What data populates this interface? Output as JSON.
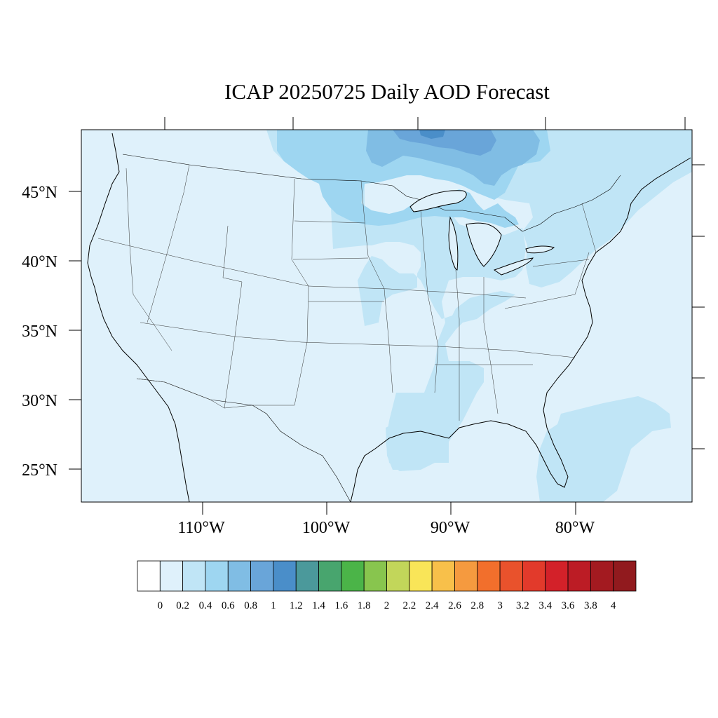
{
  "title": "ICAP 20250725 Daily AOD Forecast",
  "map": {
    "projection": "lambert-conformal",
    "region": "CONUS",
    "lon_range": [
      -119,
      -71
    ],
    "lat_range": [
      22.5,
      49.5
    ],
    "background_level": "0.1-0.2 light blue over most of the domain",
    "lat_labels": [
      "45°N",
      "40°N",
      "35°N",
      "30°N",
      "25°N"
    ],
    "lon_labels": [
      "110°W",
      "100°W",
      "90°W",
      "80°W"
    ]
  },
  "colorbar": {
    "ticks": [
      "0",
      "0.2",
      "0.4",
      "0.6",
      "0.8",
      "1",
      "1.2",
      "1.4",
      "1.6",
      "1.8",
      "2",
      "2.2",
      "2.4",
      "2.6",
      "2.8",
      "3",
      "3.2",
      "3.4",
      "3.6",
      "3.8",
      "4"
    ],
    "colors": [
      "#ffffff",
      "#dff1fb",
      "#c0e5f6",
      "#9ed6f1",
      "#80bde4",
      "#69a5d9",
      "#4a8ec9",
      "#4b999b",
      "#48a56e",
      "#4bb448",
      "#88c54e",
      "#c2d65a",
      "#f9e558",
      "#f8c04a",
      "#f59a3f",
      "#f26f2c",
      "#e9522c",
      "#e23a2b",
      "#d32129",
      "#bc1c25",
      "#a31a20",
      "#911a1e"
    ]
  },
  "chart_data": {
    "type": "heatmap",
    "title": "ICAP 20250725 Daily AOD Forecast",
    "xlabel": "",
    "ylabel": "",
    "x_ticks": [
      "110°W",
      "100°W",
      "90°W",
      "80°W"
    ],
    "y_ticks": [
      "45°N",
      "40°N",
      "35°N",
      "30°N",
      "25°N"
    ],
    "color_scale": {
      "min": 0,
      "max": 4,
      "step": 0.2
    },
    "regions": [
      {
        "area": "most of contiguous US and Gulf",
        "aod_range": [
          0.0,
          0.2
        ]
      },
      {
        "area": "southern Ontario / Lake Superior / Minnesota",
        "aod_range": [
          0.4,
          0.6
        ]
      },
      {
        "area": "northern Ontario (top edge)",
        "aod_range": [
          0.6,
          1.0
        ]
      },
      {
        "area": "Upper Midwest and Great Lakes",
        "aod_range": [
          0.2,
          0.4
        ]
      },
      {
        "area": "Mississippi Valley / Louisiana",
        "aod_range": [
          0.2,
          0.4
        ]
      },
      {
        "area": "Northeast US coast",
        "aod_range": [
          0.2,
          0.4
        ]
      },
      {
        "area": "Bahamas / Florida Atlantic",
        "aod_range": [
          0.2,
          0.4
        ]
      }
    ]
  }
}
